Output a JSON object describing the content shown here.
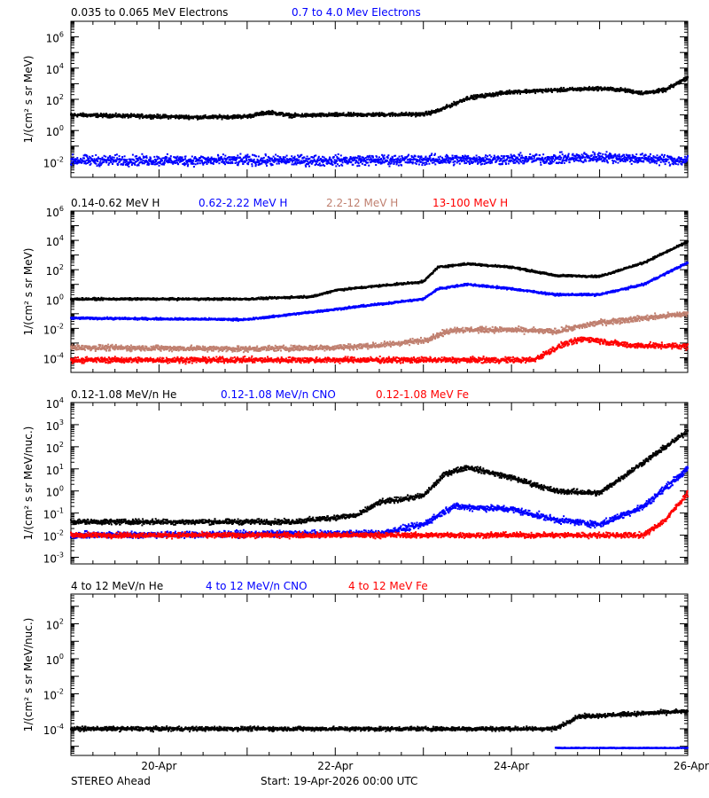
{
  "colors": {
    "black": "#000000",
    "blue": "#0000ff",
    "tan": "#c08070",
    "red": "#ff0000"
  },
  "footer": {
    "left": "STEREO Ahead",
    "center": "Start: 19-Apr-2026 00:00 UTC"
  },
  "x_axis": {
    "range": [
      "2026-04-19T00:00",
      "2026-04-26T00:00"
    ],
    "tick_labels": [
      "20-Apr",
      "22-Apr",
      "24-Apr",
      "26-Apr"
    ],
    "tick_dates": [
      "2026-04-20T00:00",
      "2026-04-22T00:00",
      "2026-04-24T00:00",
      "2026-04-26T00:00"
    ],
    "minor_tick_hours": 6
  },
  "chart_data": [
    {
      "type": "scatter",
      "panel": "electrons",
      "ylabel": "1/(cm² s sr MeV)",
      "y_scale": "log",
      "ylim": [
        0.001,
        10000000.0
      ],
      "yticks": [
        {
          "base": "10",
          "exp": "-2"
        },
        {
          "base": "10",
          "exp": "0"
        },
        {
          "base": "10",
          "exp": "2"
        },
        {
          "base": "10",
          "exp": "4"
        },
        {
          "base": "10",
          "exp": "6"
        }
      ],
      "ytick_values": [
        0.01,
        1,
        100,
        10000,
        1000000
      ],
      "series": [
        {
          "name": "0.035 to 0.065 MeV Electrons",
          "color": "black",
          "points": [
            [
              "2026-04-19T00:00",
              10
            ],
            [
              "2026-04-20T12:00",
              7
            ],
            [
              "2026-04-21T00:00",
              8
            ],
            [
              "2026-04-21T06:00",
              15
            ],
            [
              "2026-04-21T12:00",
              9
            ],
            [
              "2026-04-22T00:00",
              10
            ],
            [
              "2026-04-23T00:00",
              11
            ],
            [
              "2026-04-23T04:00",
              18
            ],
            [
              "2026-04-23T12:00",
              120
            ],
            [
              "2026-04-24T00:00",
              300
            ],
            [
              "2026-04-25T00:00",
              500
            ],
            [
              "2026-04-25T06:00",
              400
            ],
            [
              "2026-04-25T12:00",
              250
            ],
            [
              "2026-04-25T18:00",
              400
            ],
            [
              "2026-04-26T00:00",
              2500
            ]
          ],
          "scatter_dex": 0.1
        },
        {
          "name": "0.7 to 4.0 Mev Electrons",
          "color": "blue",
          "points": [
            [
              "2026-04-19T00:00",
              0.012
            ],
            [
              "2026-04-22T00:00",
              0.012
            ],
            [
              "2026-04-24T12:00",
              0.015
            ],
            [
              "2026-04-25T00:00",
              0.02
            ],
            [
              "2026-04-26T00:00",
              0.012
            ]
          ],
          "scatter_dex": 0.28
        }
      ]
    },
    {
      "type": "scatter",
      "panel": "protons",
      "ylabel": "1/(cm² s sr MeV)",
      "y_scale": "log",
      "ylim": [
        1e-05,
        1000000.0
      ],
      "yticks": [
        {
          "base": "10",
          "exp": "-4"
        },
        {
          "base": "10",
          "exp": "-2"
        },
        {
          "base": "10",
          "exp": "0"
        },
        {
          "base": "10",
          "exp": "2"
        },
        {
          "base": "10",
          "exp": "4"
        },
        {
          "base": "10",
          "exp": "6"
        }
      ],
      "ytick_values": [
        0.0001,
        0.01,
        1,
        100,
        10000,
        1000000
      ],
      "series": [
        {
          "name": "0.14-0.62 MeV H",
          "color": "black",
          "points": [
            [
              "2026-04-19T00:00",
              1
            ],
            [
              "2026-04-21T00:00",
              1
            ],
            [
              "2026-04-21T18:00",
              1.5
            ],
            [
              "2026-04-22T00:00",
              4
            ],
            [
              "2026-04-22T12:00",
              8
            ],
            [
              "2026-04-23T00:00",
              15
            ],
            [
              "2026-04-23T04:00",
              150
            ],
            [
              "2026-04-23T12:00",
              250
            ],
            [
              "2026-04-24T00:00",
              150
            ],
            [
              "2026-04-24T12:00",
              40
            ],
            [
              "2026-04-25T00:00",
              35
            ],
            [
              "2026-04-25T12:00",
              300
            ],
            [
              "2026-04-26T00:00",
              8000
            ]
          ],
          "scatter_dex": 0.06
        },
        {
          "name": "0.62-2.22 MeV H",
          "color": "blue",
          "points": [
            [
              "2026-04-19T00:00",
              0.05
            ],
            [
              "2026-04-21T00:00",
              0.04
            ],
            [
              "2026-04-22T00:00",
              0.2
            ],
            [
              "2026-04-23T00:00",
              1
            ],
            [
              "2026-04-23T04:00",
              5
            ],
            [
              "2026-04-23T12:00",
              10
            ],
            [
              "2026-04-24T00:00",
              5
            ],
            [
              "2026-04-24T12:00",
              2
            ],
            [
              "2026-04-25T00:00",
              2
            ],
            [
              "2026-04-25T12:00",
              10
            ],
            [
              "2026-04-26T00:00",
              300
            ]
          ],
          "scatter_dex": 0.06
        },
        {
          "name": "2.2-12 MeV H",
          "color": "tan",
          "points": [
            [
              "2026-04-19T00:00",
              0.0005
            ],
            [
              "2026-04-21T00:00",
              0.0004
            ],
            [
              "2026-04-22T00:00",
              0.0005
            ],
            [
              "2026-04-22T12:00",
              0.0007
            ],
            [
              "2026-04-23T00:00",
              0.0015
            ],
            [
              "2026-04-23T08:00",
              0.008
            ],
            [
              "2026-04-24T00:00",
              0.008
            ],
            [
              "2026-04-24T12:00",
              0.006
            ],
            [
              "2026-04-25T00:00",
              0.025
            ],
            [
              "2026-04-26T00:00",
              0.1
            ]
          ],
          "scatter_dex": 0.16
        },
        {
          "name": "13-100 MeV H",
          "color": "red",
          "points": [
            [
              "2026-04-19T00:00",
              7e-05
            ],
            [
              "2026-04-24T06:00",
              7e-05
            ],
            [
              "2026-04-24T14:00",
              0.0008
            ],
            [
              "2026-04-24T20:00",
              0.002
            ],
            [
              "2026-04-25T08:00",
              0.0007
            ],
            [
              "2026-04-26T00:00",
              0.0006
            ]
          ],
          "scatter_dex": 0.16
        }
      ]
    },
    {
      "type": "scatter",
      "panel": "heavy-ions-low",
      "ylabel": "1/(cm² s sr MeV/nuc.)",
      "y_scale": "log",
      "ylim": [
        0.0005,
        10000.0
      ],
      "yticks": [
        {
          "base": "10",
          "exp": "-3"
        },
        {
          "base": "10",
          "exp": "-2"
        },
        {
          "base": "10",
          "exp": "-1"
        },
        {
          "base": "10",
          "exp": "0"
        },
        {
          "base": "10",
          "exp": "1"
        },
        {
          "base": "10",
          "exp": "2"
        },
        {
          "base": "10",
          "exp": "3"
        },
        {
          "base": "10",
          "exp": "4"
        }
      ],
      "ytick_values": [
        0.001,
        0.01,
        0.1,
        1,
        10,
        100,
        1000,
        10000
      ],
      "series": [
        {
          "name": "0.12-1.08 MeV/n He",
          "color": "black",
          "points": [
            [
              "2026-04-19T00:00",
              0.04
            ],
            [
              "2026-04-21T12:00",
              0.04
            ],
            [
              "2026-04-22T06:00",
              0.08
            ],
            [
              "2026-04-22T12:00",
              0.3
            ],
            [
              "2026-04-23T00:00",
              0.6
            ],
            [
              "2026-04-23T06:00",
              6
            ],
            [
              "2026-04-23T12:00",
              12
            ],
            [
              "2026-04-24T00:00",
              4
            ],
            [
              "2026-04-24T12:00",
              1
            ],
            [
              "2026-04-25T00:00",
              0.8
            ],
            [
              "2026-04-25T12:00",
              20
            ],
            [
              "2026-04-26T00:00",
              500
            ]
          ],
          "scatter_dex": 0.1
        },
        {
          "name": "0.12-1.08 MeV/n CNO",
          "color": "blue",
          "points": [
            [
              "2026-04-19T00:00",
              0.01
            ],
            [
              "2026-04-22T12:00",
              0.012
            ],
            [
              "2026-04-23T00:00",
              0.03
            ],
            [
              "2026-04-23T08:00",
              0.2
            ],
            [
              "2026-04-24T00:00",
              0.15
            ],
            [
              "2026-04-24T12:00",
              0.05
            ],
            [
              "2026-04-25T00:00",
              0.03
            ],
            [
              "2026-04-25T12:00",
              0.2
            ],
            [
              "2026-04-26T00:00",
              10
            ]
          ],
          "scatter_dex": 0.12
        },
        {
          "name": "0.12-1.08 MeV Fe",
          "color": "red",
          "points": [
            [
              "2026-04-19T00:00",
              0.01
            ],
            [
              "2026-04-25T12:00",
              0.01
            ],
            [
              "2026-04-25T18:00",
              0.05
            ],
            [
              "2026-04-26T00:00",
              0.8
            ]
          ],
          "scatter_dex": 0.1
        }
      ]
    },
    {
      "type": "scatter",
      "panel": "heavy-ions-high",
      "ylabel": "1/(cm² s sr MeV/nuc.)",
      "y_scale": "log",
      "ylim": [
        3e-06,
        5000.0
      ],
      "yticks": [
        {
          "base": "10",
          "exp": "-4"
        },
        {
          "base": "10",
          "exp": "-2"
        },
        {
          "base": "10",
          "exp": "0"
        },
        {
          "base": "10",
          "exp": "2"
        }
      ],
      "ytick_values": [
        0.0001,
        0.01,
        1,
        100
      ],
      "series": [
        {
          "name": "4 to 12 MeV/n He",
          "color": "black",
          "points": [
            [
              "2026-04-19T00:00",
              0.0001
            ],
            [
              "2026-04-24T12:00",
              0.0001
            ],
            [
              "2026-04-24T18:00",
              0.0005
            ],
            [
              "2026-04-26T00:00",
              0.001
            ]
          ],
          "scatter_dex": 0.1
        },
        {
          "name": "4 to 12 MeV/n CNO",
          "color": "blue",
          "points": [
            [
              "2026-04-24T12:00",
              8e-06
            ],
            [
              "2026-04-26T00:00",
              8e-06
            ]
          ],
          "scatter_dex": 0.02
        },
        {
          "name": "4 to 12 MeV Fe",
          "color": "red",
          "points": [],
          "scatter_dex": 0
        }
      ]
    }
  ]
}
